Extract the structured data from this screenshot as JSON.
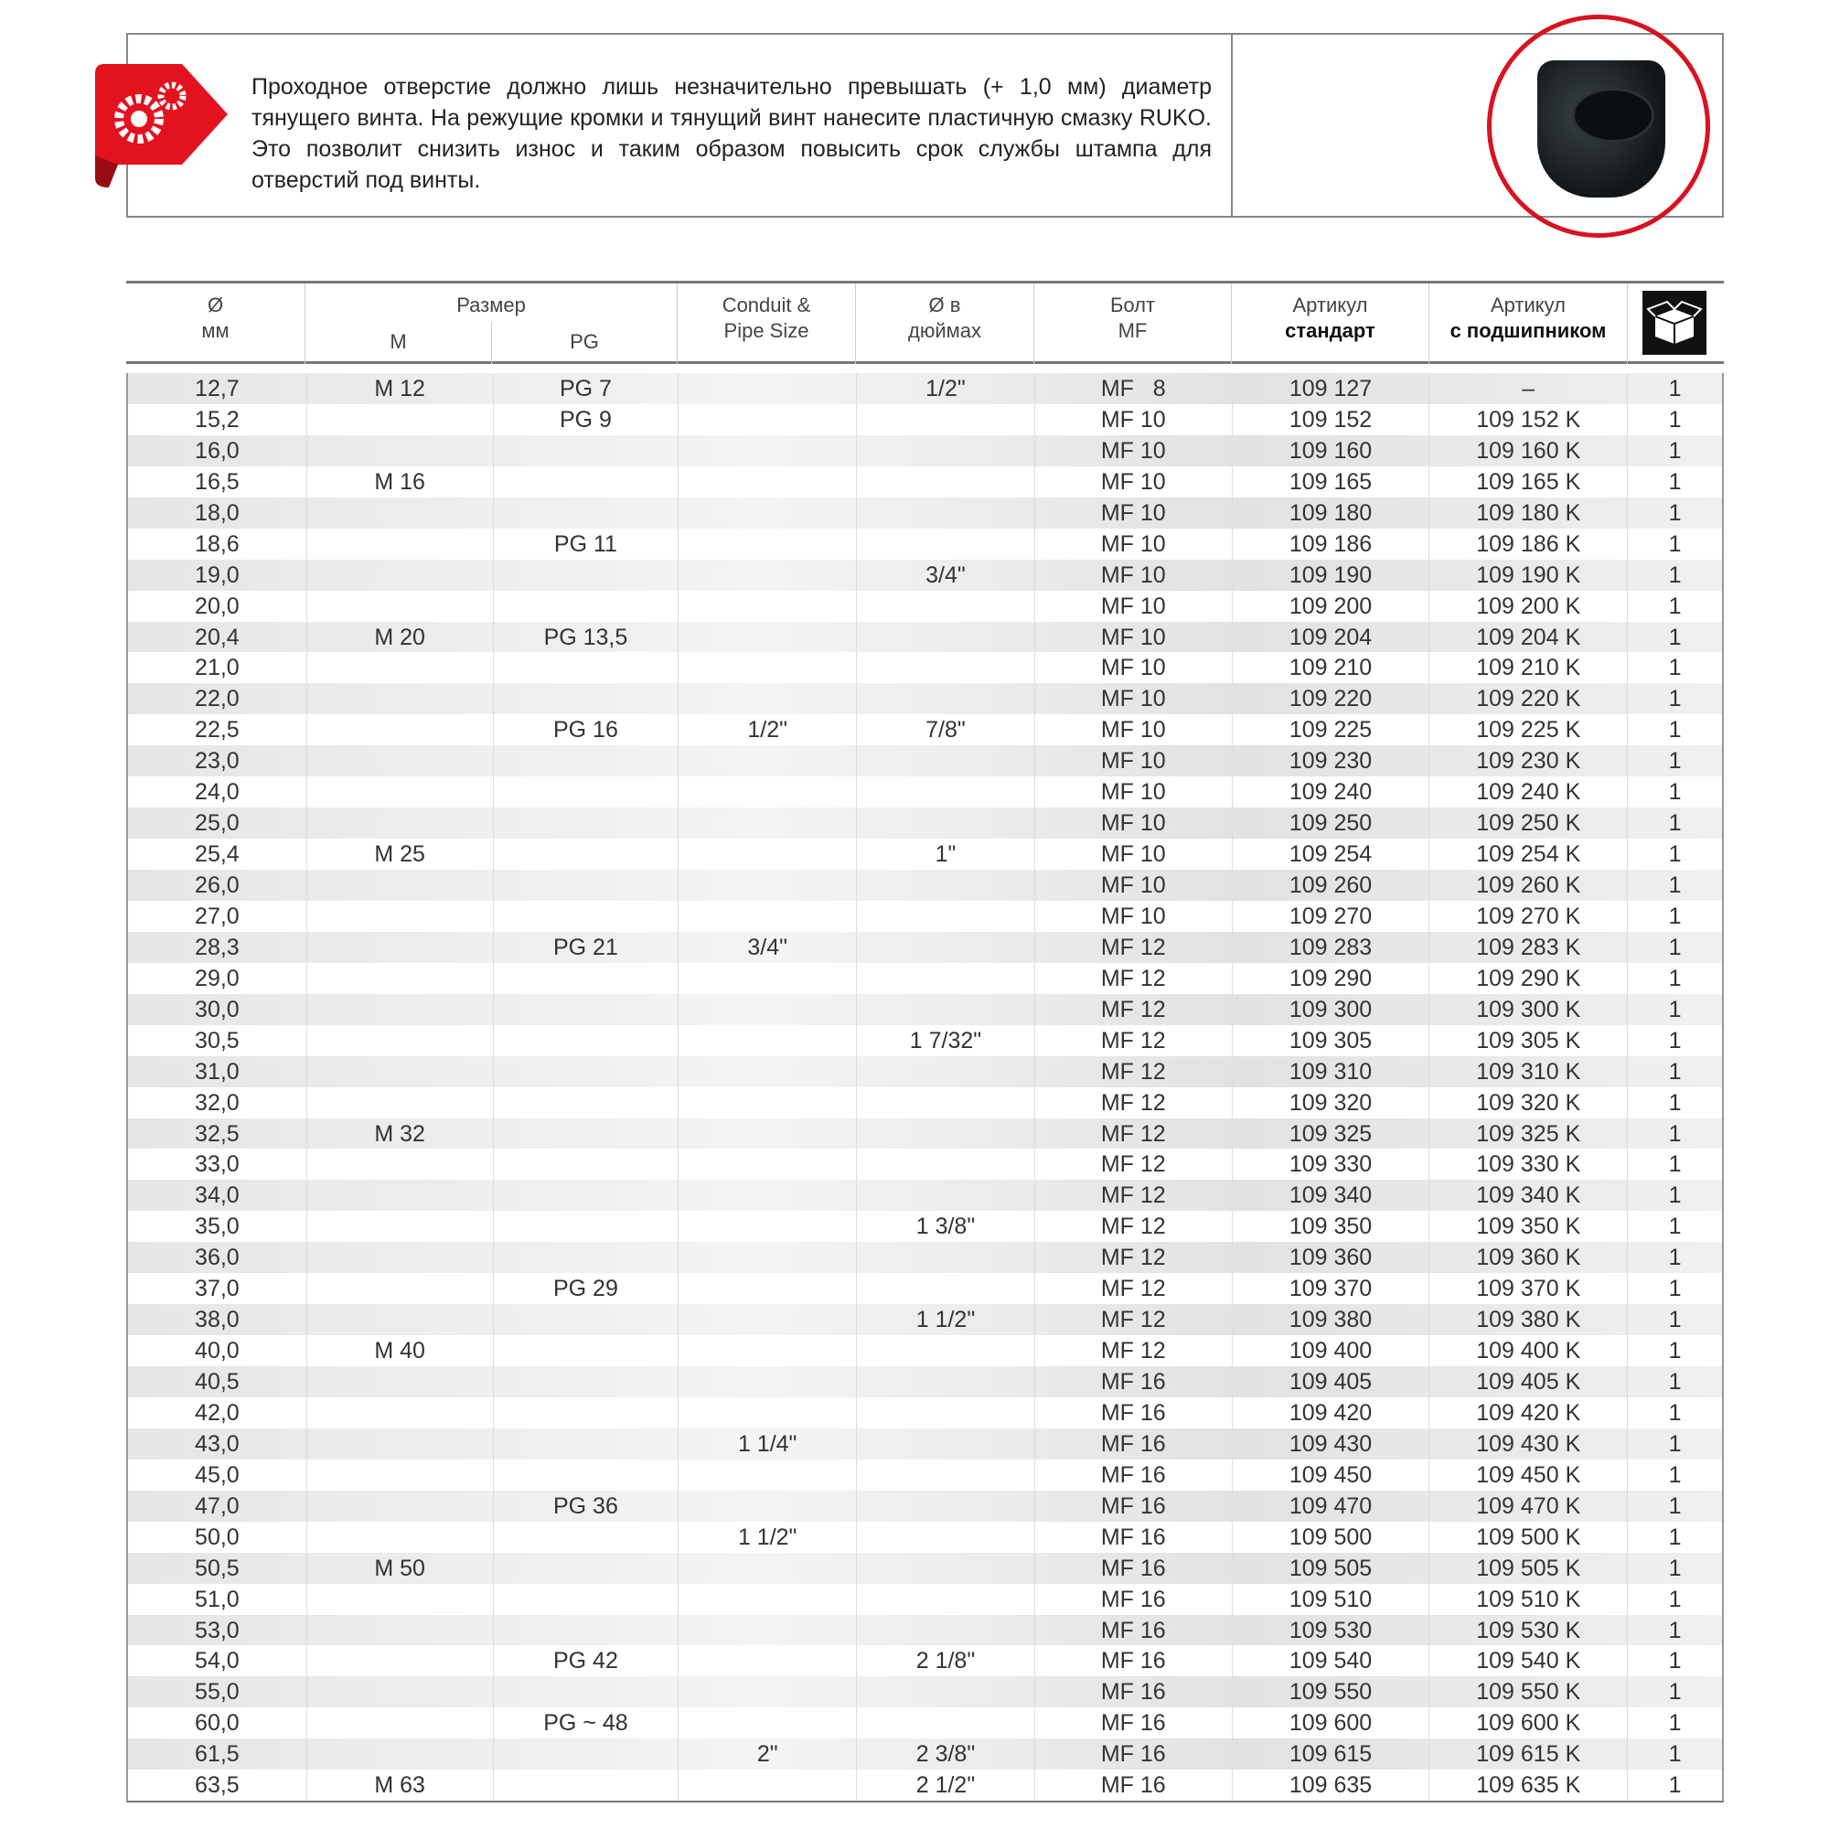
{
  "note": {
    "text": "Проходное отверстие должно лишь незначительно превышать (+ 1,0 мм) диаметр тянущего винта. На режущие кромки и тянущий винт нанесите пластичную смазку RUKO. Это позволит снизить износ и таким образом повысить срок службы штампа для отверстий под винты.",
    "icon": "gears-tag-icon",
    "accent": "#d8121f"
  },
  "header": {
    "diam": "Ø",
    "diam_unit": "мм",
    "size": "Размер",
    "m": "M",
    "pg": "PG",
    "conduit": "Conduit &",
    "conduit2": "Pipe Size",
    "inch": "Ø в",
    "inch2": "дюймах",
    "bolt": "Болт",
    "bolt2": "MF",
    "art": "Артикул",
    "art2": "стандарт",
    "artk": "Артикул",
    "artk2": "с подшипником",
    "pack_icon": "box-icon"
  },
  "rows": [
    [
      "12,7",
      "M 12",
      "PG 7",
      "",
      "1/2\"",
      "MF   8",
      "109 127",
      "–",
      "1"
    ],
    [
      "15,2",
      "",
      "PG 9",
      "",
      "",
      "MF 10",
      "109 152",
      "109 152 K",
      "1"
    ],
    [
      "16,0",
      "",
      "",
      "",
      "",
      "MF 10",
      "109 160",
      "109 160 K",
      "1"
    ],
    [
      "16,5",
      "M 16",
      "",
      "",
      "",
      "MF 10",
      "109 165",
      "109 165 K",
      "1"
    ],
    [
      "18,0",
      "",
      "",
      "",
      "",
      "MF 10",
      "109 180",
      "109 180 K",
      "1"
    ],
    [
      "18,6",
      "",
      "PG 11",
      "",
      "",
      "MF 10",
      "109 186",
      "109 186 K",
      "1"
    ],
    [
      "19,0",
      "",
      "",
      "",
      "3/4\"",
      "MF 10",
      "109 190",
      "109 190 K",
      "1"
    ],
    [
      "20,0",
      "",
      "",
      "",
      "",
      "MF 10",
      "109 200",
      "109 200 K",
      "1"
    ],
    [
      "20,4",
      "M 20",
      "PG 13,5",
      "",
      "",
      "MF 10",
      "109 204",
      "109 204 K",
      "1"
    ],
    [
      "21,0",
      "",
      "",
      "",
      "",
      "MF 10",
      "109 210",
      "109 210 K",
      "1"
    ],
    [
      "22,0",
      "",
      "",
      "",
      "",
      "MF 10",
      "109 220",
      "109 220 K",
      "1"
    ],
    [
      "22,5",
      "",
      "PG 16",
      "1/2\"",
      "7/8\"",
      "MF 10",
      "109 225",
      "109 225 K",
      "1"
    ],
    [
      "23,0",
      "",
      "",
      "",
      "",
      "MF 10",
      "109 230",
      "109 230 K",
      "1"
    ],
    [
      "24,0",
      "",
      "",
      "",
      "",
      "MF 10",
      "109 240",
      "109 240 K",
      "1"
    ],
    [
      "25,0",
      "",
      "",
      "",
      "",
      "MF 10",
      "109 250",
      "109 250 K",
      "1"
    ],
    [
      "25,4",
      "M 25",
      "",
      "",
      "1\"",
      "MF 10",
      "109 254",
      "109 254 K",
      "1"
    ],
    [
      "26,0",
      "",
      "",
      "",
      "",
      "MF 10",
      "109 260",
      "109 260 K",
      "1"
    ],
    [
      "27,0",
      "",
      "",
      "",
      "",
      "MF 10",
      "109 270",
      "109 270 K",
      "1"
    ],
    [
      "28,3",
      "",
      "PG 21",
      "3/4\"",
      "",
      "MF 12",
      "109 283",
      "109 283 K",
      "1"
    ],
    [
      "29,0",
      "",
      "",
      "",
      "",
      "MF 12",
      "109 290",
      "109 290 K",
      "1"
    ],
    [
      "30,0",
      "",
      "",
      "",
      "",
      "MF 12",
      "109 300",
      "109 300 K",
      "1"
    ],
    [
      "30,5",
      "",
      "",
      "",
      "1 7/32\"",
      "MF 12",
      "109 305",
      "109 305 K",
      "1"
    ],
    [
      "31,0",
      "",
      "",
      "",
      "",
      "MF 12",
      "109 310",
      "109 310 K",
      "1"
    ],
    [
      "32,0",
      "",
      "",
      "",
      "",
      "MF 12",
      "109 320",
      "109 320 K",
      "1"
    ],
    [
      "32,5",
      "M 32",
      "",
      "",
      "",
      "MF 12",
      "109 325",
      "109 325 K",
      "1"
    ],
    [
      "33,0",
      "",
      "",
      "",
      "",
      "MF 12",
      "109 330",
      "109 330 K",
      "1"
    ],
    [
      "34,0",
      "",
      "",
      "",
      "",
      "MF 12",
      "109 340",
      "109 340 K",
      "1"
    ],
    [
      "35,0",
      "",
      "",
      "",
      "1 3/8\"",
      "MF 12",
      "109 350",
      "109 350 K",
      "1"
    ],
    [
      "36,0",
      "",
      "",
      "",
      "",
      "MF 12",
      "109 360",
      "109 360 K",
      "1"
    ],
    [
      "37,0",
      "",
      "PG 29",
      "",
      "",
      "MF 12",
      "109 370",
      "109 370 K",
      "1"
    ],
    [
      "38,0",
      "",
      "",
      "",
      "1 1/2\"",
      "MF 12",
      "109 380",
      "109 380 K",
      "1"
    ],
    [
      "40,0",
      "M 40",
      "",
      "",
      "",
      "MF 12",
      "109 400",
      "109 400 K",
      "1"
    ],
    [
      "40,5",
      "",
      "",
      "",
      "",
      "MF 16",
      "109 405",
      "109 405 K",
      "1"
    ],
    [
      "42,0",
      "",
      "",
      "",
      "",
      "MF 16",
      "109 420",
      "109 420 K",
      "1"
    ],
    [
      "43,0",
      "",
      "",
      "1 1/4\"",
      "",
      "MF 16",
      "109 430",
      "109 430 K",
      "1"
    ],
    [
      "45,0",
      "",
      "",
      "",
      "",
      "MF 16",
      "109 450",
      "109 450 K",
      "1"
    ],
    [
      "47,0",
      "",
      "PG 36",
      "",
      "",
      "MF 16",
      "109 470",
      "109 470 K",
      "1"
    ],
    [
      "50,0",
      "",
      "",
      "1 1/2\"",
      "",
      "MF 16",
      "109 500",
      "109 500 K",
      "1"
    ],
    [
      "50,5",
      "M 50",
      "",
      "",
      "",
      "MF 16",
      "109 505",
      "109 505 K",
      "1"
    ],
    [
      "51,0",
      "",
      "",
      "",
      "",
      "MF 16",
      "109 510",
      "109 510 K",
      "1"
    ],
    [
      "53,0",
      "",
      "",
      "",
      "",
      "MF 16",
      "109 530",
      "109 530 K",
      "1"
    ],
    [
      "54,0",
      "",
      "PG 42",
      "",
      "2 1/8\"",
      "MF 16",
      "109 540",
      "109 540 K",
      "1"
    ],
    [
      "55,0",
      "",
      "",
      "",
      "",
      "MF 16",
      "109 550",
      "109 550 K",
      "1"
    ],
    [
      "60,0",
      "",
      "PG ~ 48",
      "",
      "",
      "MF 16",
      "109 600",
      "109 600 K",
      "1"
    ],
    [
      "61,5",
      "",
      "",
      "2\"",
      "2 3/8\"",
      "MF 16",
      "109 615",
      "109 615 K",
      "1"
    ],
    [
      "63,5",
      "M 63",
      "",
      "",
      "2 1/2\"",
      "MF 16",
      "109 635",
      "109 635 K",
      "1"
    ]
  ]
}
